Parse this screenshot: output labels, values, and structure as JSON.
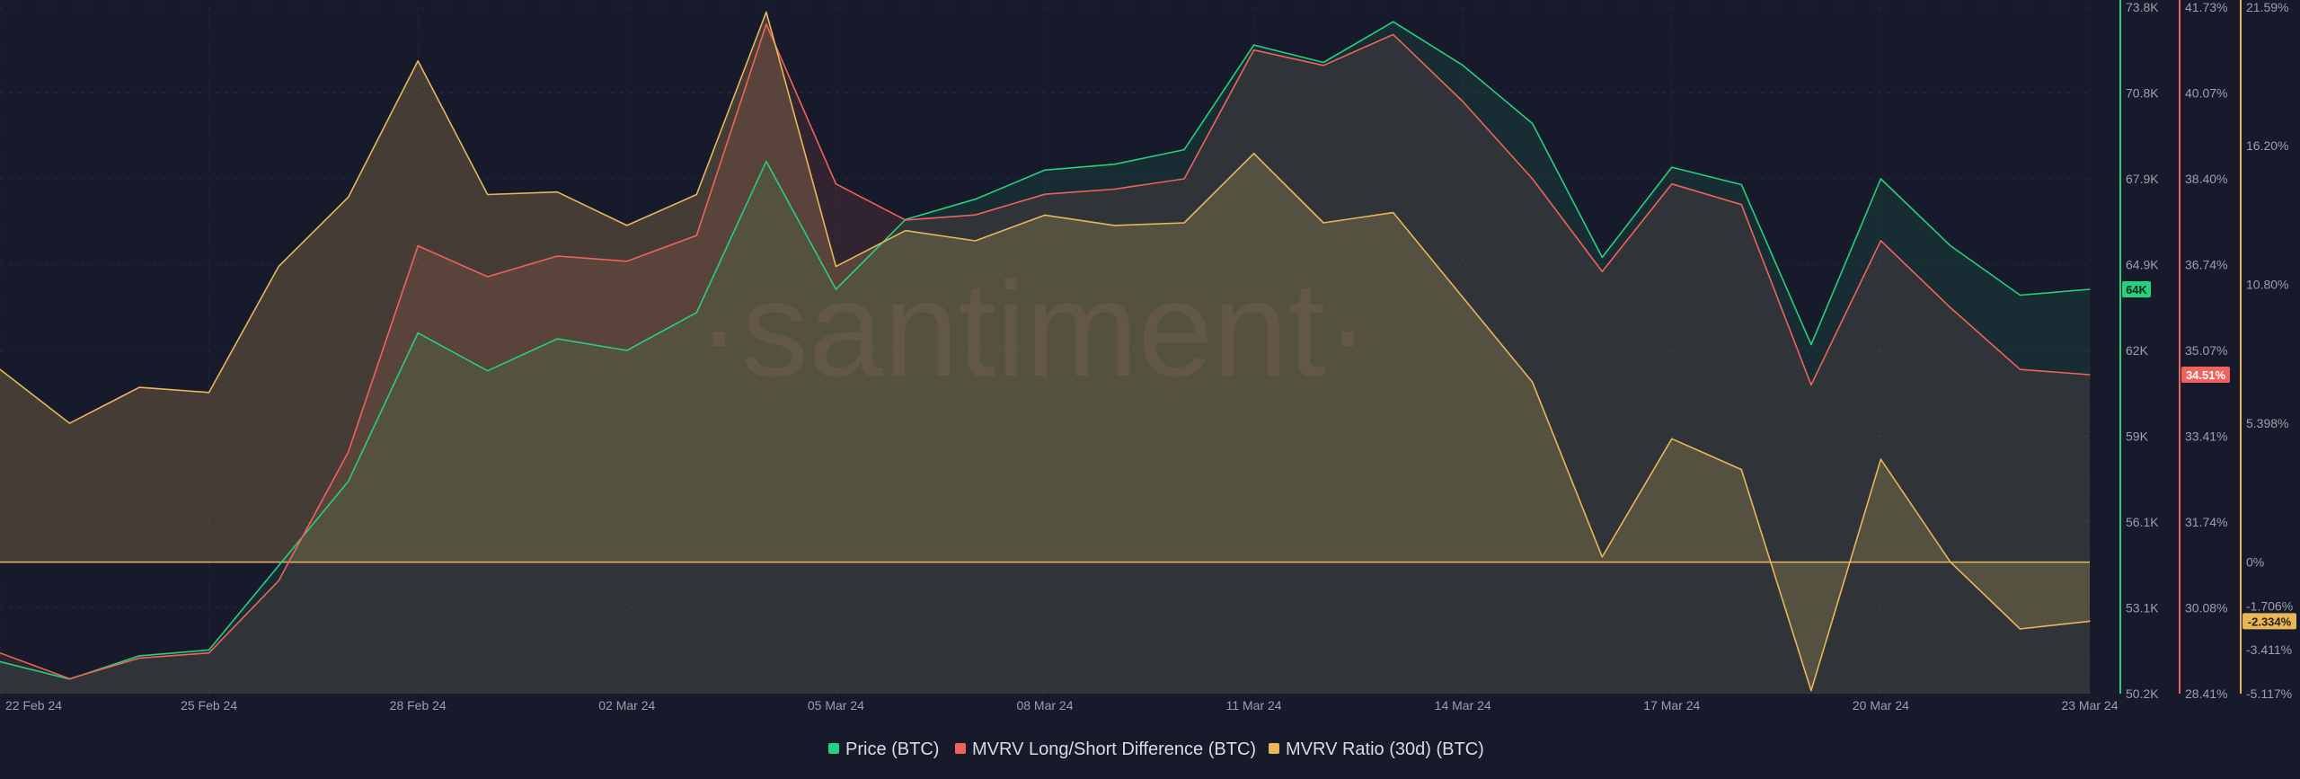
{
  "watermark": "·santiment·",
  "colors": {
    "background": "#161a2b",
    "grid": "#22273a",
    "axis_text": "#9aa0ad",
    "price": "#26d07c",
    "mvrv_ls": "#f0625d",
    "mvrv_30d": "#e8b75a"
  },
  "chart_data": {
    "type": "line",
    "x_tick_labels": [
      "22 Feb 24",
      "25 Feb 24",
      "28 Feb 24",
      "02 Mar 24",
      "05 Mar 24",
      "08 Mar 24",
      "11 Mar 24",
      "14 Mar 24",
      "17 Mar 24",
      "20 Mar 24",
      "23 Mar 24"
    ],
    "axes": {
      "price": {
        "ticks": [
          "73.8K",
          "70.8K",
          "67.9K",
          "64.9K",
          "62K",
          "59K",
          "56.1K",
          "53.1K",
          "50.2K"
        ],
        "range": [
          50.2,
          73.8
        ]
      },
      "mvrv_ls": {
        "ticks": [
          "41.73%",
          "40.07%",
          "38.40%",
          "36.74%",
          "35.07%",
          "33.41%",
          "31.74%",
          "30.08%",
          "28.41%"
        ],
        "range": [
          28.41,
          41.73
        ]
      },
      "mvrv_30d": {
        "ticks": [
          "21.59%",
          "16.20%",
          "10.80%",
          "5.398%",
          "0%",
          "-1.706%",
          "-3.411%",
          "-5.117%"
        ],
        "tick_values": [
          21.59,
          16.2,
          10.8,
          5.398,
          0,
          -1.706,
          -3.411,
          -5.117
        ],
        "range": [
          -5.117,
          21.59
        ]
      }
    },
    "series": [
      {
        "name": "Price (BTC)",
        "key": "price",
        "axis": "price",
        "last_label": "64K",
        "values": [
          51.3,
          50.7,
          51.5,
          51.7,
          54.6,
          57.5,
          62.6,
          61.3,
          62.4,
          62.0,
          63.3,
          68.5,
          64.1,
          66.5,
          67.2,
          68.2,
          68.4,
          68.9,
          72.5,
          71.9,
          73.3,
          71.8,
          69.8,
          65.2,
          68.3,
          67.7,
          62.2,
          67.9,
          65.6,
          63.9,
          64.1
        ]
      },
      {
        "name": "MVRV Long/Short Difference (BTC)",
        "key": "mvrv_ls",
        "axis": "mvrv_ls",
        "last_label": "34.51%",
        "values": [
          29.2,
          28.7,
          29.1,
          29.2,
          30.6,
          33.1,
          37.1,
          36.5,
          36.9,
          36.8,
          37.3,
          41.4,
          38.3,
          37.6,
          37.7,
          38.1,
          38.2,
          38.4,
          40.9,
          40.6,
          41.2,
          39.9,
          38.4,
          36.6,
          38.3,
          37.9,
          34.4,
          37.2,
          35.9,
          34.7,
          34.6
        ]
      },
      {
        "name": "MVRV Ratio (30d) (BTC)",
        "key": "mvrv_30d",
        "axis": "mvrv_30d",
        "last_label": "-2.334%",
        "values": [
          7.5,
          5.4,
          6.8,
          6.6,
          11.5,
          14.2,
          19.5,
          14.3,
          14.4,
          13.1,
          14.3,
          21.4,
          11.5,
          12.9,
          12.5,
          13.5,
          13.1,
          13.2,
          15.9,
          13.2,
          13.6,
          10.3,
          7.0,
          0.2,
          4.8,
          3.6,
          -5.0,
          4.0,
          0.0,
          -2.6,
          -2.3
        ]
      }
    ],
    "legend_position": "bottom",
    "grid": true
  }
}
